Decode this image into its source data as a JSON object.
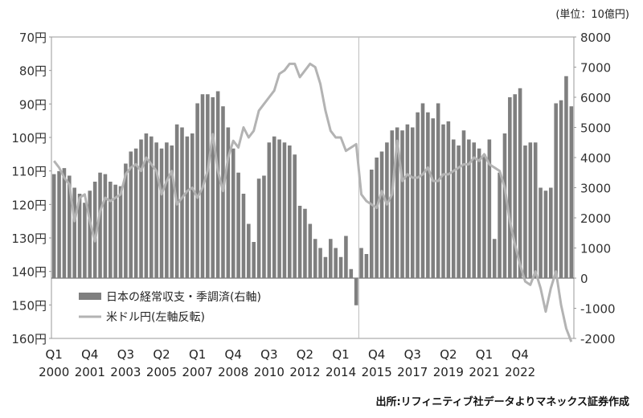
{
  "chart_data": {
    "type": "bar+line",
    "unit_label": "(単位：10億円)",
    "source": "出所:リフィニティブ社データよりマネックス証券作成",
    "left_axis": {
      "ticks": [
        "70円",
        "80円",
        "90円",
        "100円",
        "110円",
        "120円",
        "130円",
        "140円",
        "150円",
        "160円"
      ],
      "range": [
        70,
        160
      ],
      "inverted": true
    },
    "right_axis": {
      "ticks": [
        "8000",
        "7000",
        "6000",
        "5000",
        "4000",
        "3000",
        "2000",
        "1000",
        "0",
        "-1000",
        "-2000"
      ],
      "range": [
        -2000,
        8000
      ]
    },
    "x_labels": [
      {
        "q": "Q1",
        "year": "2000",
        "index": 0
      },
      {
        "q": "Q4",
        "year": "2001",
        "index": 7
      },
      {
        "q": "Q3",
        "year": "2003",
        "index": 14
      },
      {
        "q": "Q2",
        "year": "2005",
        "index": 21
      },
      {
        "q": "Q1",
        "year": "2007",
        "index": 28
      },
      {
        "q": "Q4",
        "year": "2008",
        "index": 35
      },
      {
        "q": "Q3",
        "year": "2010",
        "index": 42
      },
      {
        "q": "Q2",
        "year": "2012",
        "index": 49
      },
      {
        "q": "Q1",
        "year": "2014",
        "index": 56
      },
      {
        "q": "Q4",
        "year": "2015",
        "index": 63
      },
      {
        "q": "Q3",
        "year": "2017",
        "index": 70
      },
      {
        "q": "Q2",
        "year": "2019",
        "index": 77
      },
      {
        "q": "Q1",
        "year": "2021",
        "index": 84
      },
      {
        "q": "Q4",
        "year": "2022",
        "index": 91
      }
    ],
    "series": [
      {
        "name": "日本の経常収支・季調済(右軸)",
        "kind": "bar",
        "axis": "right",
        "color": "#7f7f7f",
        "values": [
          3450,
          3550,
          3650,
          3400,
          3000,
          2800,
          2500,
          2900,
          3200,
          3500,
          3450,
          3200,
          3100,
          3050,
          3800,
          4200,
          4300,
          4600,
          4800,
          4700,
          4500,
          4300,
          4500,
          4400,
          5100,
          5000,
          4700,
          4800,
          5800,
          6100,
          6100,
          6000,
          6200,
          5700,
          5000,
          4300,
          3500,
          2800,
          1800,
          1200,
          3300,
          3400,
          4500,
          4700,
          4600,
          4500,
          4400,
          4100,
          2400,
          2300,
          1800,
          1300,
          1000,
          700,
          1300,
          1000,
          700,
          1400,
          300,
          -900,
          1000,
          800,
          3600,
          4000,
          4200,
          4500,
          4900,
          5000,
          4900,
          5100,
          5000,
          5500,
          5800,
          5500,
          5300,
          5800,
          5100,
          5200,
          4600,
          4400,
          4900,
          4600,
          4500,
          4300,
          4100,
          4600,
          1300,
          3500,
          4800,
          6000,
          6100,
          6300,
          4400,
          4500,
          4500,
          3000,
          2900,
          3000,
          5800,
          5900,
          6700,
          5700
        ]
      },
      {
        "name": "米ドル円(左軸反転)",
        "kind": "line",
        "axis": "left",
        "color": "#b3b3b3",
        "values": [
          107,
          109,
          112,
          114,
          125,
          118,
          117,
          125,
          131,
          122,
          118,
          119,
          118,
          117,
          111,
          109,
          108,
          110,
          106,
          108,
          110,
          117,
          113,
          110,
          120,
          118,
          116,
          115,
          118,
          115,
          110,
          99,
          110,
          116,
          106,
          101,
          103,
          97,
          100,
          98,
          92,
          90,
          88,
          86,
          81,
          80,
          78,
          78,
          82,
          80,
          78,
          79,
          84,
          92,
          98,
          100,
          100,
          104,
          103,
          102,
          117,
          119,
          120,
          121,
          116,
          120,
          117,
          101,
          113,
          111,
          112,
          112,
          111,
          109,
          113,
          113,
          111,
          111,
          110,
          109,
          108,
          108,
          106,
          107,
          105,
          108,
          109,
          110,
          115,
          125,
          132,
          138,
          143,
          144,
          140,
          145,
          152,
          145,
          140,
          150,
          157,
          161
        ]
      }
    ]
  }
}
